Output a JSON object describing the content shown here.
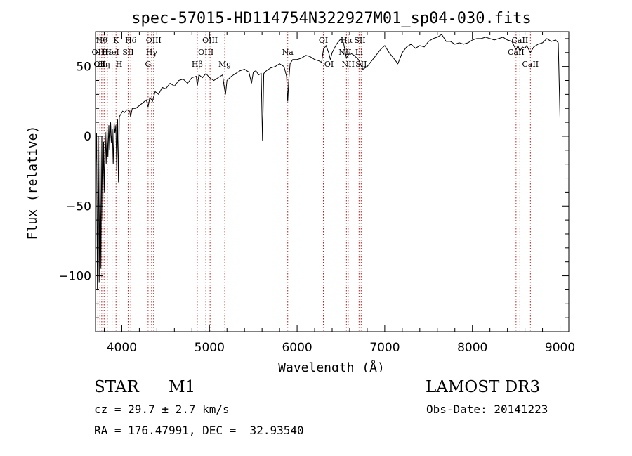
{
  "chart_data": {
    "type": "line",
    "title": "spec-57015-HD114754N322927M01_sp04-030.fits",
    "xlabel": "Wavelength (Å)",
    "ylabel": "Flux (relative)",
    "xlim": [
      3700,
      9100
    ],
    "ylim": [
      -140,
      75
    ],
    "x_ticks": [
      4000,
      5000,
      6000,
      7000,
      8000,
      9000
    ],
    "y_ticks": [
      -100,
      -50,
      0,
      50
    ],
    "line_color": "#000000",
    "marker_color": "#b22222",
    "series": [
      {
        "values": [
          [
            3700,
            -30
          ],
          [
            3712,
            2
          ],
          [
            3722,
            -110
          ],
          [
            3732,
            0
          ],
          [
            3742,
            -105
          ],
          [
            3752,
            -5
          ],
          [
            3762,
            -95
          ],
          [
            3772,
            0
          ],
          [
            3782,
            -60
          ],
          [
            3792,
            -4
          ],
          [
            3802,
            -40
          ],
          [
            3812,
            3
          ],
          [
            3822,
            -20
          ],
          [
            3832,
            6
          ],
          [
            3842,
            -15
          ],
          [
            3852,
            8
          ],
          [
            3862,
            -10
          ],
          [
            3872,
            10
          ],
          [
            3882,
            -5
          ],
          [
            3892,
            5
          ],
          [
            3902,
            -20
          ],
          [
            3912,
            10
          ],
          [
            3922,
            2
          ],
          [
            3932,
            8
          ],
          [
            3942,
            -25
          ],
          [
            3952,
            12
          ],
          [
            3962,
            -33
          ],
          [
            3972,
            14
          ],
          [
            3990,
            16
          ],
          [
            4010,
            18
          ],
          [
            4030,
            17
          ],
          [
            4060,
            19
          ],
          [
            4090,
            18
          ],
          [
            4100,
            14
          ],
          [
            4120,
            20
          ],
          [
            4160,
            20
          ],
          [
            4200,
            22
          ],
          [
            4240,
            24
          ],
          [
            4280,
            26
          ],
          [
            4300,
            21
          ],
          [
            4320,
            28
          ],
          [
            4350,
            25
          ],
          [
            4380,
            32
          ],
          [
            4420,
            30
          ],
          [
            4460,
            35
          ],
          [
            4500,
            34
          ],
          [
            4550,
            38
          ],
          [
            4600,
            36
          ],
          [
            4650,
            40
          ],
          [
            4700,
            41
          ],
          [
            4750,
            38
          ],
          [
            4800,
            42
          ],
          [
            4850,
            43
          ],
          [
            4861,
            36
          ],
          [
            4880,
            44
          ],
          [
            4920,
            42
          ],
          [
            4960,
            45
          ],
          [
            5000,
            42
          ],
          [
            5050,
            40
          ],
          [
            5100,
            42
          ],
          [
            5150,
            44
          ],
          [
            5167,
            36
          ],
          [
            5183,
            30
          ],
          [
            5200,
            40
          ],
          [
            5250,
            43
          ],
          [
            5300,
            45
          ],
          [
            5350,
            47
          ],
          [
            5400,
            48
          ],
          [
            5450,
            46
          ],
          [
            5480,
            38
          ],
          [
            5500,
            46
          ],
          [
            5530,
            47
          ],
          [
            5560,
            44
          ],
          [
            5590,
            45
          ],
          [
            5605,
            -3
          ],
          [
            5620,
            45
          ],
          [
            5650,
            47
          ],
          [
            5700,
            49
          ],
          [
            5750,
            50
          ],
          [
            5800,
            52
          ],
          [
            5850,
            50
          ],
          [
            5880,
            43
          ],
          [
            5893,
            25
          ],
          [
            5905,
            40
          ],
          [
            5920,
            52
          ],
          [
            5950,
            55
          ],
          [
            6000,
            55
          ],
          [
            6050,
            56
          ],
          [
            6100,
            58
          ],
          [
            6150,
            57
          ],
          [
            6200,
            55
          ],
          [
            6250,
            54
          ],
          [
            6280,
            53
          ],
          [
            6300,
            62
          ],
          [
            6330,
            65
          ],
          [
            6360,
            60
          ],
          [
            6380,
            55
          ],
          [
            6400,
            60
          ],
          [
            6450,
            66
          ],
          [
            6500,
            70
          ],
          [
            6530,
            67
          ],
          [
            6563,
            56
          ],
          [
            6600,
            60
          ],
          [
            6650,
            58
          ],
          [
            6700,
            55
          ],
          [
            6750,
            48
          ],
          [
            6800,
            50
          ],
          [
            6850,
            54
          ],
          [
            6900,
            58
          ],
          [
            6950,
            62
          ],
          [
            7000,
            65
          ],
          [
            7050,
            60
          ],
          [
            7100,
            56
          ],
          [
            7150,
            52
          ],
          [
            7200,
            60
          ],
          [
            7250,
            64
          ],
          [
            7300,
            66
          ],
          [
            7350,
            63
          ],
          [
            7400,
            65
          ],
          [
            7450,
            64
          ],
          [
            7500,
            68
          ],
          [
            7550,
            70
          ],
          [
            7600,
            71
          ],
          [
            7650,
            73
          ],
          [
            7700,
            68
          ],
          [
            7750,
            68
          ],
          [
            7800,
            66
          ],
          [
            7850,
            67
          ],
          [
            7900,
            66
          ],
          [
            7950,
            67
          ],
          [
            8000,
            69
          ],
          [
            8050,
            70
          ],
          [
            8100,
            70
          ],
          [
            8150,
            71
          ],
          [
            8200,
            70
          ],
          [
            8250,
            69
          ],
          [
            8300,
            70
          ],
          [
            8350,
            71
          ],
          [
            8400,
            69
          ],
          [
            8450,
            68
          ],
          [
            8498,
            62
          ],
          [
            8520,
            65
          ],
          [
            8542,
            61
          ],
          [
            8570,
            64
          ],
          [
            8600,
            63
          ],
          [
            8620,
            65
          ],
          [
            8662,
            60
          ],
          [
            8700,
            64
          ],
          [
            8750,
            66
          ],
          [
            8800,
            67
          ],
          [
            8850,
            70
          ],
          [
            8900,
            68
          ],
          [
            8950,
            69
          ],
          [
            8980,
            67
          ],
          [
            9000,
            13
          ]
        ]
      }
    ],
    "line_markers": [
      {
        "x": 3727,
        "label": "OII",
        "row": 1
      },
      {
        "x": 3750,
        "label": "OII",
        "row": 2
      },
      {
        "x": 3771,
        "label": "Hθ",
        "row": 0
      },
      {
        "x": 3798,
        "label": "Hη",
        "row": 2
      },
      {
        "x": 3835,
        "label": "Hε",
        "row": 1
      },
      {
        "x": 3889,
        "label": "HeI",
        "row": 1
      },
      {
        "x": 3934,
        "label": "K",
        "row": 0
      },
      {
        "x": 3969,
        "label": "H",
        "row": 2
      },
      {
        "x": 4072,
        "label": "SII",
        "row": 1
      },
      {
        "x": 4102,
        "label": "Hδ",
        "row": 0
      },
      {
        "x": 4300,
        "label": "G",
        "row": 2
      },
      {
        "x": 4340,
        "label": "Hγ",
        "row": 1
      },
      {
        "x": 4363,
        "label": "OIII",
        "row": 0
      },
      {
        "x": 4861,
        "label": "Hβ",
        "row": 2
      },
      {
        "x": 4959,
        "label": "OIII",
        "row": 1
      },
      {
        "x": 5007,
        "label": "OIII",
        "row": 0
      },
      {
        "x": 5175,
        "label": "Mg",
        "row": 2
      },
      {
        "x": 5893,
        "label": "Na",
        "row": 1
      },
      {
        "x": 6300,
        "label": "OI",
        "row": 0
      },
      {
        "x": 6364,
        "label": "OI",
        "row": 2
      },
      {
        "x": 6548,
        "label": "NII",
        "row": 1
      },
      {
        "x": 6563,
        "label": "Hα",
        "row": 0
      },
      {
        "x": 6583,
        "label": "NII",
        "row": 2
      },
      {
        "x": 6707,
        "label": "Li",
        "row": 1
      },
      {
        "x": 6716,
        "label": "SII",
        "row": 0
      },
      {
        "x": 6731,
        "label": "SII",
        "row": 2
      },
      {
        "x": 8498,
        "label": "CaII",
        "row": 1
      },
      {
        "x": 8542,
        "label": "CaII",
        "row": 0
      },
      {
        "x": 8662,
        "label": "CaII",
        "row": 2
      }
    ]
  },
  "info": {
    "object_class": "STAR",
    "subclass": "M1",
    "survey": "LAMOST DR3",
    "cz": "cz = 29.7 ± 2.7 km/s",
    "obs_date": "Obs-Date: 20141223",
    "coords": "RA = 176.47991, DEC =  32.93540"
  }
}
